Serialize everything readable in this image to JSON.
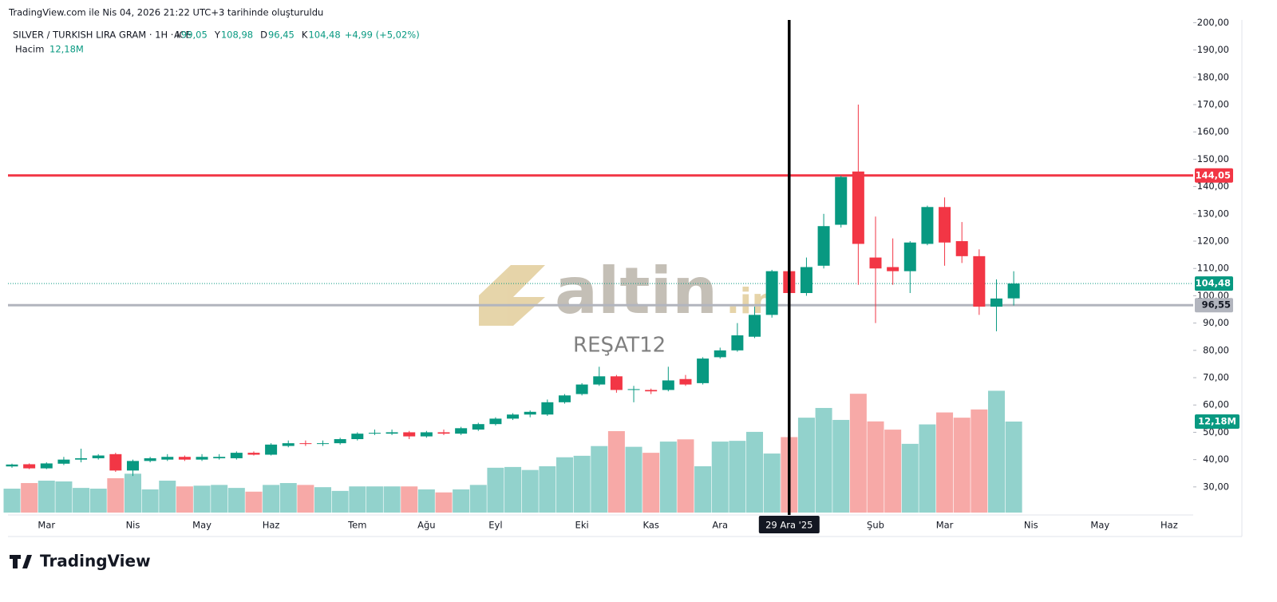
{
  "header": {
    "caption": "TradingView.com ile Nis 04, 2026 21:22 UTC+3 tarihinde oluşturuldu",
    "brand": "TradingView"
  },
  "chart_data": {
    "type": "candlestick",
    "title": "SILVER / TURKISH LIRA GRAM · 1H · ICE",
    "ohlc_legend": [
      {
        "key": "A",
        "value": "99,05"
      },
      {
        "key": "Y",
        "value": "108,98"
      },
      {
        "key": "D",
        "value": "96,45"
      },
      {
        "key": "K",
        "value": "104,48"
      }
    ],
    "change": "+4,99 (+5,02%)",
    "volume_legend": {
      "name": "Hacim",
      "value": "12,18M"
    },
    "watermark": "altin.in",
    "watermark_tld": ".in",
    "watermark_brand": "altin",
    "watermark_user": "REŞAT12",
    "categories": [
      null,
      null,
      "Mar",
      null,
      null,
      null,
      null,
      "Nis",
      null,
      null,
      null,
      "May",
      null,
      null,
      null,
      "Haz",
      null,
      null,
      null,
      null,
      "Tem",
      null,
      null,
      null,
      "Ağu",
      null,
      null,
      null,
      "Eyl",
      null,
      null,
      null,
      null,
      "Eki",
      null,
      null,
      null,
      "Kas",
      null,
      null,
      null,
      "Ara",
      null,
      null,
      null,
      "29 Ara '25",
      null,
      null,
      null,
      null,
      "Şub",
      null,
      null,
      null,
      "Mar",
      null,
      null,
      null,
      null,
      "Nis",
      null,
      null,
      null,
      "May",
      null,
      null,
      null,
      "Haz"
    ],
    "crosshair_category": "29 Ara '25",
    "open": [
      37.5,
      38.3,
      36.8,
      38.5,
      40,
      40.5,
      42,
      36,
      39.5,
      40,
      41,
      40,
      40.5,
      40.5,
      42.5,
      41.8,
      45,
      46,
      45.8,
      46,
      47.5,
      49.5,
      49.5,
      50,
      48.5,
      50,
      49.5,
      51,
      53,
      55,
      56.5,
      56.5,
      61,
      64,
      67.5,
      70.5,
      65.5,
      65.5,
      65.5,
      69.5,
      68,
      77.5,
      80,
      85,
      93,
      109,
      101,
      111,
      126,
      145.5,
      114,
      110.5,
      109,
      119,
      132.5,
      120,
      114.5,
      96,
      99.05,
      null,
      null,
      null,
      null,
      null,
      null,
      null,
      null,
      null
    ],
    "high": [
      38.5,
      38.6,
      39,
      41,
      44,
      42,
      42.5,
      40,
      41,
      42,
      41.5,
      42,
      42,
      43,
      43,
      46,
      47,
      47,
      47,
      48,
      50,
      51,
      51,
      50.5,
      50.5,
      51,
      52,
      53.5,
      55.5,
      57,
      58,
      62,
      64,
      68,
      74,
      71,
      67,
      66,
      74,
      71,
      77.5,
      81,
      90,
      96,
      109.5,
      115,
      114,
      130,
      144,
      170,
      129,
      121,
      120,
      133,
      136,
      127,
      117,
      106,
      108.98,
      null,
      null,
      null,
      null,
      null,
      null,
      null,
      null,
      null
    ],
    "low": [
      37,
      36.5,
      36.5,
      38,
      39,
      40,
      35.5,
      34,
      39,
      39.5,
      39.5,
      39.5,
      40,
      40,
      41.5,
      41.5,
      44.5,
      45,
      45,
      45.5,
      47,
      49,
      49,
      47.5,
      48,
      49,
      49,
      50.5,
      52.5,
      54.5,
      55.5,
      56,
      60.5,
      63.5,
      67,
      64.5,
      61,
      64,
      65,
      67,
      67.5,
      77,
      79.5,
      84.5,
      92,
      96,
      100,
      110,
      125,
      104,
      90,
      104,
      101,
      118.5,
      111,
      112,
      93,
      87,
      96.45,
      null,
      null,
      null,
      null,
      null,
      null,
      null,
      null,
      null
    ],
    "close": [
      38.2,
      36.8,
      38.6,
      40,
      40.5,
      41.5,
      36,
      39.5,
      40.5,
      41,
      40,
      41,
      41,
      42.5,
      41.8,
      45.5,
      46,
      45.8,
      46,
      47.5,
      49.5,
      49.8,
      50,
      48.5,
      50,
      49.5,
      51.5,
      53,
      55,
      56.5,
      57.5,
      61,
      63.5,
      67.5,
      70.5,
      65.5,
      65.8,
      65,
      69,
      67.5,
      77,
      80,
      85.5,
      93,
      109,
      101,
      110.5,
      125.5,
      143.5,
      119,
      110,
      109,
      119.5,
      132.5,
      119.5,
      114.5,
      96,
      99,
      104.48,
      null,
      null,
      null,
      null,
      null,
      null,
      null,
      null,
      null
    ],
    "volume": [
      3.2,
      3.95,
      4.27,
      4.17,
      3.3,
      3.2,
      4.6,
      5.2,
      3.1,
      4.27,
      3.5,
      3.6,
      3.7,
      3.3,
      2.8,
      3.7,
      3.95,
      3.7,
      3.4,
      2.9,
      3.5,
      3.5,
      3.5,
      3.5,
      3.1,
      2.7,
      3.1,
      3.7,
      6,
      6.1,
      5.7,
      6.2,
      7.4,
      7.6,
      8.9,
      10.9,
      8.8,
      8,
      9.5,
      9.8,
      6.2,
      9.5,
      9.6,
      10.8,
      7.9,
      10.1,
      12.7,
      14,
      12.4,
      15.9,
      12.2,
      11.1,
      9.2,
      11.8,
      13.4,
      12.7,
      13.8,
      16.3,
      12.18,
      null,
      null,
      null,
      null,
      null,
      null,
      null,
      null,
      null
    ],
    "volume_value_labels": {
      "58": "12,18M"
    },
    "up_color": "#089981",
    "down_color": "#f23645",
    "volume_up_color": "#92d2cc",
    "volume_down_color": "#f7a9a7",
    "ylim": [
      20.6,
      201
    ],
    "yticks": [
      {
        "value": 30,
        "label": "30,00"
      },
      {
        "value": 40,
        "label": "40,00"
      },
      {
        "value": 50,
        "label": "50,00"
      },
      {
        "value": 60,
        "label": "60,00"
      },
      {
        "value": 70,
        "label": "70,00"
      },
      {
        "value": 80,
        "label": "80,00"
      },
      {
        "value": 90,
        "label": "90,00"
      },
      {
        "value": 100,
        "label": "100,00"
      },
      {
        "value": 110,
        "label": "110,00"
      },
      {
        "value": 120,
        "label": "120,00"
      },
      {
        "value": 130,
        "label": "130,00"
      },
      {
        "value": 140,
        "label": "140,00"
      },
      {
        "value": 150,
        "label": "150,00"
      },
      {
        "value": 160,
        "label": "160,00"
      },
      {
        "value": 170,
        "label": "170,00"
      },
      {
        "value": 180,
        "label": "180,00"
      },
      {
        "value": 190,
        "label": "190,00"
      },
      {
        "value": 200,
        "label": "200,00"
      }
    ],
    "hlines": [
      {
        "value": 144.05,
        "label": "144,05",
        "color": "#f23645"
      },
      {
        "value": 96.55,
        "label": "96,55",
        "color": "#b2b5be"
      }
    ],
    "last_price": {
      "value": 104.48,
      "label": "104,48"
    }
  }
}
